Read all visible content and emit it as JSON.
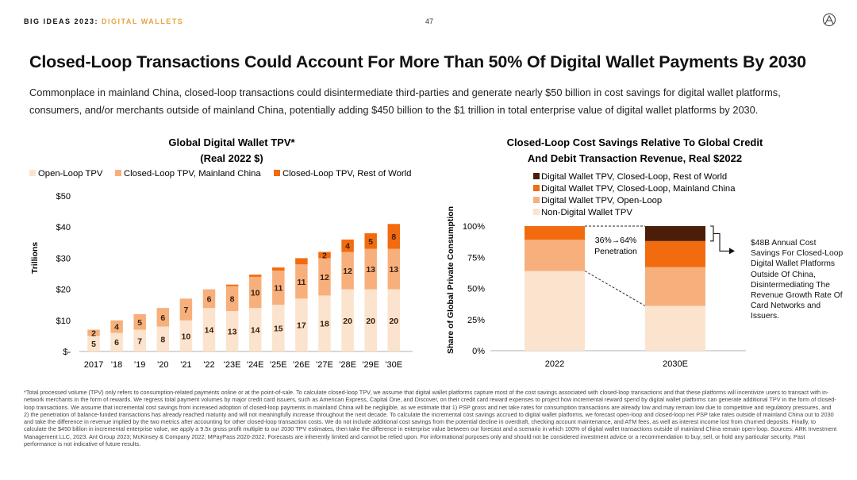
{
  "header": {
    "prefix": "BIG IDEAS 2023:",
    "section": "DIGITAL WALLETS",
    "page": "47"
  },
  "logo_icon": "ark-logo-icon",
  "title": "Closed-Loop Transactions Could Account For More Than 50% Of Digital Wallet Payments By 2030",
  "subtitle": "Commonplace in mainland China, closed-loop transactions could disintermediate third-parties and generate nearly $50 billion in cost savings for digital wallet platforms, consumers, and/or merchants outside of mainland China, potentially adding $450 billion to the $1 trillion in total enterprise value of digital wallet platforms by 2030.",
  "colors": {
    "open_loop": "#fbe3cd",
    "closed_china": "#f7b07c",
    "closed_row": "#f26b0f",
    "dark": "#4a1e08",
    "accent": "#e8a33d"
  },
  "chart_data": [
    {
      "type": "bar",
      "stacked": true,
      "title_line1": "Global Digital Wallet TPV*",
      "title_line2": "(Real 2022 $)",
      "ylabel": "Trillions",
      "ylim": [
        0,
        50
      ],
      "yticks": [
        "$-",
        "$10",
        "$20",
        "$30",
        "$40",
        "$50"
      ],
      "legend_position": "top",
      "categories": [
        "2017",
        "'18",
        "'19",
        "'20",
        "'21",
        "'22",
        "'23E",
        "'24E",
        "'25E",
        "'26E",
        "'27E",
        "'28E",
        "'29E",
        "'30E"
      ],
      "series": [
        {
          "name": "Open-Loop TPV",
          "color": "#fbe3cd",
          "values": [
            5,
            6,
            7,
            8,
            10,
            14,
            13,
            14,
            15,
            17,
            18,
            20,
            20,
            20
          ],
          "labels": [
            "5",
            "6",
            "7",
            "8",
            "10",
            "14",
            "13",
            "14",
            "15",
            "17",
            "18",
            "20",
            "20",
            "20"
          ]
        },
        {
          "name": "Closed-Loop TPV, Mainland China",
          "color": "#f7b07c",
          "values": [
            2,
            4,
            5,
            6,
            7,
            6,
            8,
            10,
            11,
            11,
            12,
            12,
            13,
            13
          ],
          "labels": [
            "2",
            "4",
            "5",
            "6",
            "7",
            "6",
            "8",
            "10",
            "11",
            "11",
            "12",
            "12",
            "13",
            "13"
          ]
        },
        {
          "name": "Closed-Loop TPV, Rest of World",
          "color": "#f26b0f",
          "values": [
            0,
            0,
            0,
            0,
            0,
            0,
            0.5,
            0.7,
            1,
            2,
            2,
            4,
            5,
            8
          ],
          "labels": [
            "",
            "",
            "",
            "",
            "",
            "",
            "",
            "",
            "",
            "",
            "2",
            "4",
            "5",
            "8"
          ]
        }
      ]
    },
    {
      "type": "bar",
      "stacked": true,
      "title_line1": "Closed-Loop Cost Savings Relative To Global Credit",
      "title_line2": "And Debit Transaction Revenue, Real $2022",
      "ylabel": "Share of Global Private Consumption",
      "ylim": [
        0,
        100
      ],
      "yticks": [
        "0%",
        "25%",
        "50%",
        "75%",
        "100%"
      ],
      "legend_position": "top",
      "categories": [
        "2022",
        "2030E"
      ],
      "series": [
        {
          "name": "Non-Digital Wallet TPV",
          "color": "#fbe3cd",
          "values": [
            64,
            36
          ]
        },
        {
          "name": "Digital Wallet TPV, Open-Loop",
          "color": "#f7b07c",
          "values": [
            25,
            31
          ]
        },
        {
          "name": "Digital Wallet TPV, Closed-Loop, Mainland China",
          "color": "#f26b0f",
          "values": [
            11,
            21
          ]
        },
        {
          "name": "Digital Wallet TPV, Closed-Loop, Rest of World",
          "color": "#4a1e08",
          "values": [
            0,
            12
          ]
        }
      ],
      "legend_order": [
        "Digital Wallet TPV, Closed-Loop, Rest of World",
        "Digital Wallet TPV, Closed-Loop, Mainland China",
        "Digital Wallet TPV, Open-Loop",
        "Non-Digital Wallet TPV"
      ],
      "annotations": {
        "penetration_line1": "36%→64%",
        "penetration_line2": "Penetration"
      }
    }
  ],
  "annotation_text": "$48B Annual Cost Savings For Closed-Loop Digital Wallet Platforms Outside Of China, Disintermediating The Revenue Growth Rate Of Card Networks and Issuers.",
  "footnote": "*Total processed volume (TPV) only refers to consumption-related payments online or at the point-of-sale. To calculate closed-loop TPV, we assume that digital wallet platforms capture most of the cost savings associated with closed-loop transactions and that these platforms will incentivize users to transact with in-network merchants in the form of rewards. We regress total payment volumes by major credit card issuers, such as American Express, Capital One, and Discover, on their credit card reward expenses to project how incremental reward spend by digital wallet platforms can generate additional TPV in the form of closed-loop transactions. We assume that incremental cost savings from increased adoption of closed-loop payments in mainland China will be negligible, as we estimate that 1) PSP gross and net take rates for consumption transactions are already low and may remain low due to competitive and regulatory pressures, and 2) the penetration of balance-funded transactions has already reached maturity and will not meaningfully increase throughout the next decade. To calculate the incremental cost savings accrued to digital wallet platforms, we forecast open-loop and closed-loop net PSP take rates outside of mainland China out to 2030  and take the difference in revenue implied by the two metrics after accounting for other closed-loop transaction costs. We do not include additional cost savings from the potential decline in overdraft, checking account maintenance, and ATM fees, as well as interest income lost from churned deposits. Finally, to calculate the $450 billion in incremental enterprise value, we apply a 9.5x gross profit multiple to our 2030 TPV estimates, then take the difference in enterprise value between our forecast and a scenario in which 100% of digital wallet transactions outside of mainland China remain open-loop. Sources: ARK Investment Management LLC, 2023. Ant Group 2023; McKinsey & Company 2022; MPayPass 2020-2022. Forecasts are inherently limited and cannot be relied upon. For informational purposes only and should not be considered investment advice or a recommendation to buy, sell, or hold any particular security. Past performance is not indicative of future results."
}
